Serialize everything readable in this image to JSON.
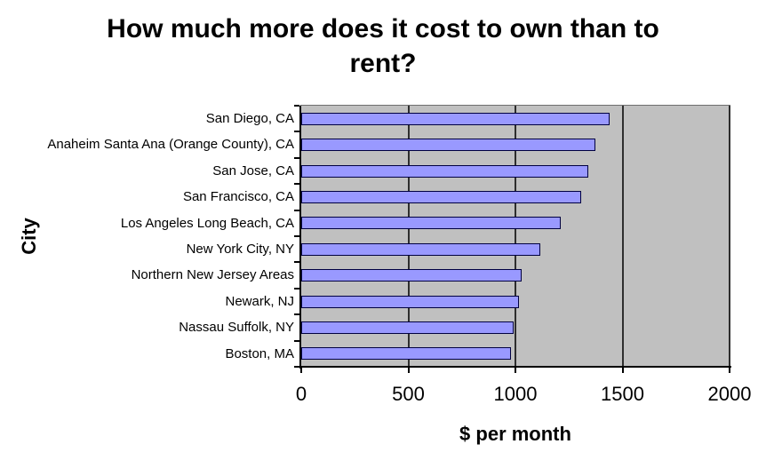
{
  "title": {
    "line1": "How much more does it cost to own than to",
    "line2": "rent?"
  },
  "chart_data": {
    "type": "bar",
    "orientation": "horizontal",
    "title": "How much more does it cost to own than to rent?",
    "xlabel": "$ per month",
    "ylabel": "City",
    "xlim": [
      0,
      2000
    ],
    "x_ticks": [
      0,
      500,
      1000,
      1500,
      2000
    ],
    "grid": true,
    "legend": false,
    "categories": [
      "San Diego, CA",
      "Anaheim Santa Ana (Orange County), CA",
      "San Jose, CA",
      "San Francisco, CA",
      "Los Angeles Long Beach, CA",
      "New York City, NY",
      "Northern New Jersey Areas",
      "Newark, NJ",
      "Nassau Suffolk, NY",
      "Boston, MA"
    ],
    "values": [
      1440,
      1375,
      1340,
      1305,
      1210,
      1115,
      1030,
      1015,
      990,
      980
    ]
  },
  "colors": {
    "bar_fill": "#9999FF",
    "bar_border": "#000040",
    "plot_bg": "#C0C0C0",
    "gridline": "#2e2e2e",
    "background": "#FFFFFF",
    "text": "#000000"
  }
}
